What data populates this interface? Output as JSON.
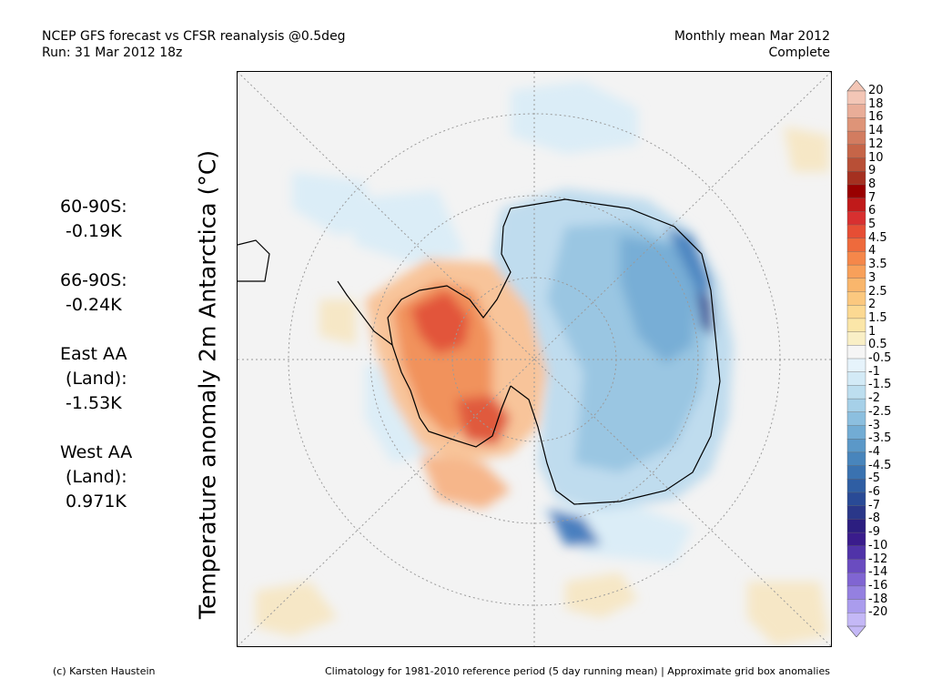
{
  "header": {
    "line1": "NCEP GFS forecast vs CFSR reanalysis @0.5deg",
    "line2": "Run: 31 Mar 2012 18z",
    "right1": "Monthly mean Mar 2012",
    "right2": "Complete"
  },
  "stats": [
    {
      "label": "60-90S:",
      "value": " -0.19K"
    },
    {
      "label": "66-90S:",
      "value": " -0.24K"
    },
    {
      "label": "East AA\n (Land):",
      "value": " -1.53K"
    },
    {
      "label": "West AA\n (Land):",
      "value": " 0.971K"
    }
  ],
  "ylabel": "Temperature anomaly 2m Antarctica (°C)",
  "colorbar": {
    "labels": [
      "20",
      "18",
      "16",
      "14",
      "12",
      "10",
      "9",
      "8",
      "7",
      "6",
      "5",
      "4.5",
      "4",
      "3.5",
      "3",
      "2.5",
      "2",
      "1.5",
      "1",
      "0.5",
      "-0.5",
      "-1",
      "-1.5",
      "-2",
      "-2.5",
      "-3",
      "-3.5",
      "-4",
      "-4.5",
      "-5",
      "-6",
      "-7",
      "-8",
      "-9",
      "-10",
      "-12",
      "-14",
      "-16",
      "-18",
      "-20"
    ],
    "colors": [
      "#f3c6b6",
      "#e9ad98",
      "#de9478",
      "#d27c60",
      "#c66548",
      "#b84f36",
      "#a53020",
      "#990000",
      "#c01a1a",
      "#d83030",
      "#e64e34",
      "#ee6a3c",
      "#f5874a",
      "#f8a05a",
      "#f9b66c",
      "#fbc87f",
      "#fcd992",
      "#fbe6a8",
      "#f9efc6",
      "#f5f5f5",
      "#e6f3fb",
      "#d3eaf6",
      "#bddeef",
      "#a6d0e8",
      "#8cbfdf",
      "#72acd4",
      "#5b98c8",
      "#4885bc",
      "#3a72b0",
      "#2f5ea3",
      "#294a96",
      "#2a3789",
      "#2c1e80",
      "#3a1c8c",
      "#5033a8",
      "#6a4cc0",
      "#8065d2",
      "#9480e0",
      "#aa9ced",
      "#c4b8f6"
    ]
  },
  "footer": {
    "left": "(c) Karsten Haustein",
    "right": "Climatology for 1981-2010 reference period (5 day running mean) | Approximate grid box anomalies"
  }
}
